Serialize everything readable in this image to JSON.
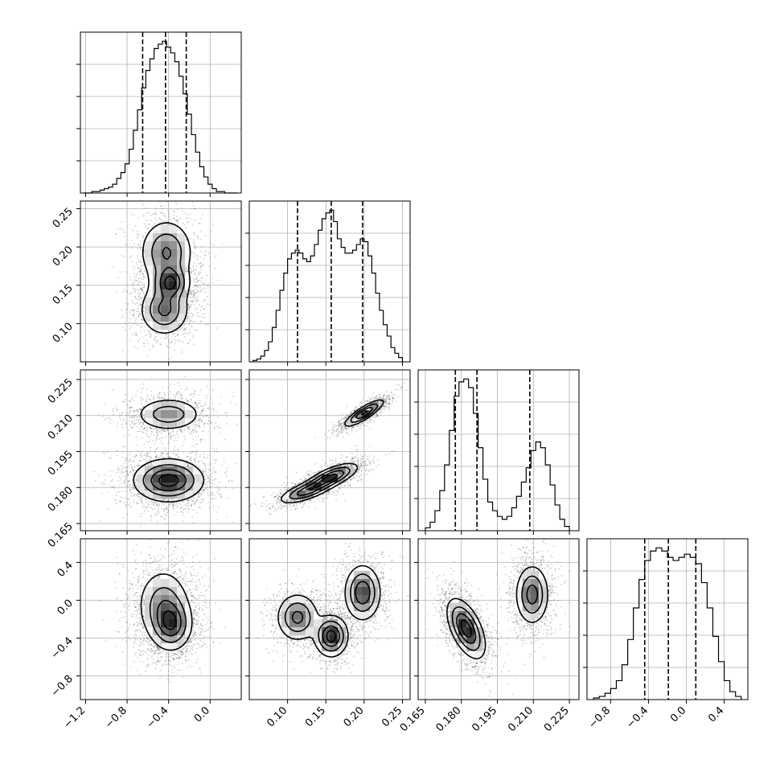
{
  "chart_data": {
    "type": "corner",
    "grid": true,
    "n_params": 4,
    "params": [
      {
        "range": [
          -1.25,
          0.3
        ],
        "ticks": [
          -1.2,
          -0.8,
          -0.4,
          0.0
        ],
        "tick_labels": [
          "−1.2",
          "−0.8",
          "−0.4",
          "0.0"
        ]
      },
      {
        "range": [
          0.05,
          0.26
        ],
        "ticks": [
          0.1,
          0.15,
          0.2,
          0.25
        ],
        "tick_labels": [
          "0.10",
          "0.15",
          "0.20",
          "0.25"
        ]
      },
      {
        "range": [
          0.162,
          0.229
        ],
        "ticks": [
          0.165,
          0.18,
          0.195,
          0.21,
          0.225
        ],
        "tick_labels": [
          "0.165",
          "0.180",
          "0.195",
          "0.210",
          "0.225"
        ]
      },
      {
        "range": [
          -1.05,
          0.65
        ],
        "ticks": [
          -0.8,
          -0.4,
          0.0,
          0.4
        ],
        "tick_labels": [
          "−0.8",
          "−0.4",
          "0.0",
          "0.4"
        ]
      }
    ],
    "histograms": [
      {
        "param": 0,
        "quantiles": [
          -0.65,
          -0.43,
          -0.23
        ],
        "bin_edges": [
          -1.22,
          -1.18,
          -1.14,
          -1.1,
          -1.06,
          -1.02,
          -0.98,
          -0.94,
          -0.9,
          -0.86,
          -0.82,
          -0.78,
          -0.74,
          -0.7,
          -0.66,
          -0.62,
          -0.58,
          -0.54,
          -0.5,
          -0.46,
          -0.42,
          -0.38,
          -0.34,
          -0.3,
          -0.26,
          -0.22,
          -0.18,
          -0.14,
          -0.1,
          -0.06,
          -0.02,
          0.02,
          0.06,
          0.1,
          0.14,
          0.18,
          0.22,
          0.26
        ],
        "counts": [
          0,
          0,
          1,
          1,
          2,
          3,
          4,
          6,
          10,
          14,
          20,
          30,
          43,
          57,
          72,
          84,
          92,
          99,
          102,
          104,
          100,
          96,
          90,
          80,
          68,
          54,
          40,
          28,
          18,
          11,
          6,
          3,
          1,
          1,
          0,
          0,
          0
        ]
      },
      {
        "param": 1,
        "quantiles": [
          0.113,
          0.157,
          0.198
        ],
        "bin_edges": [
          0.055,
          0.06,
          0.065,
          0.07,
          0.075,
          0.08,
          0.085,
          0.09,
          0.095,
          0.1,
          0.105,
          0.11,
          0.115,
          0.12,
          0.125,
          0.13,
          0.135,
          0.14,
          0.145,
          0.15,
          0.155,
          0.16,
          0.165,
          0.17,
          0.175,
          0.18,
          0.185,
          0.19,
          0.195,
          0.2,
          0.205,
          0.21,
          0.215,
          0.22,
          0.225,
          0.23,
          0.235,
          0.24,
          0.245,
          0.25
        ],
        "counts": [
          1,
          2,
          4,
          8,
          14,
          24,
          36,
          50,
          62,
          72,
          76,
          78,
          76,
          72,
          70,
          74,
          82,
          92,
          100,
          104,
          106,
          98,
          86,
          80,
          76,
          76,
          78,
          82,
          86,
          84,
          74,
          62,
          48,
          36,
          26,
          18,
          10,
          6,
          3
        ]
      },
      {
        "param": 2,
        "quantiles": [
          0.1775,
          0.1865,
          0.2085
        ],
        "bin_edges": [
          0.165,
          0.167,
          0.169,
          0.171,
          0.173,
          0.175,
          0.177,
          0.179,
          0.181,
          0.183,
          0.185,
          0.187,
          0.189,
          0.191,
          0.193,
          0.195,
          0.197,
          0.199,
          0.201,
          0.203,
          0.205,
          0.207,
          0.209,
          0.211,
          0.213,
          0.215,
          0.217,
          0.219,
          0.221,
          0.223,
          0.225
        ],
        "counts": [
          2,
          6,
          14,
          28,
          46,
          70,
          94,
          104,
          106,
          100,
          82,
          58,
          36,
          20,
          14,
          10,
          8,
          10,
          16,
          24,
          34,
          44,
          56,
          62,
          58,
          46,
          32,
          18,
          8,
          3
        ]
      },
      {
        "param": 3,
        "quantiles": [
          -0.44,
          -0.19,
          0.1
        ],
        "bin_edges": [
          -0.98,
          -0.92,
          -0.86,
          -0.8,
          -0.74,
          -0.68,
          -0.62,
          -0.56,
          -0.5,
          -0.44,
          -0.38,
          -0.32,
          -0.26,
          -0.2,
          -0.14,
          -0.08,
          -0.02,
          0.04,
          0.1,
          0.16,
          0.22,
          0.28,
          0.34,
          0.4,
          0.46,
          0.52,
          0.58
        ],
        "counts": [
          1,
          2,
          4,
          7,
          12,
          22,
          38,
          58,
          76,
          88,
          94,
          96,
          94,
          90,
          88,
          90,
          92,
          90,
          86,
          74,
          58,
          40,
          24,
          12,
          5,
          2
        ]
      }
    ],
    "pairs": [
      {
        "x": 0,
        "y": 1,
        "modes": [
          {
            "c": [
              -0.42,
              0.193
            ],
            "s": [
              0.13,
              0.022
            ],
            "w": 0.8
          },
          {
            "c": [
              -0.38,
              0.153
            ],
            "s": [
              0.09,
              0.012
            ],
            "w": 1.0
          },
          {
            "c": [
              -0.44,
              0.118
            ],
            "s": [
              0.12,
              0.017
            ],
            "w": 0.85
          }
        ]
      },
      {
        "x": 0,
        "y": 2,
        "modes": [
          {
            "c": [
              -0.4,
              0.2105
            ],
            "s": [
              0.16,
              0.0035
            ],
            "w": 0.55
          },
          {
            "c": [
              -0.4,
              0.183
            ],
            "s": [
              0.17,
              0.0045
            ],
            "w": 1.0
          }
        ]
      },
      {
        "x": 1,
        "y": 2,
        "modes": [
          {
            "c": [
              0.2,
              0.211
            ],
            "s": [
              0.013,
              0.0028
            ],
            "w": 0.9,
            "rho": 0.85
          },
          {
            "c": [
              0.125,
              0.1785
            ],
            "s": [
              0.018,
              0.0026
            ],
            "w": 0.75,
            "rho": 0.7
          },
          {
            "c": [
              0.158,
              0.1845
            ],
            "s": [
              0.017,
              0.0028
            ],
            "w": 0.9,
            "rho": 0.7
          }
        ]
      },
      {
        "x": 0,
        "y": 3,
        "modes": [
          {
            "c": [
              -0.45,
              -0.05
            ],
            "s": [
              0.13,
              0.2
            ],
            "w": 0.75
          },
          {
            "c": [
              -0.37,
              -0.26
            ],
            "s": [
              0.1,
              0.14
            ],
            "w": 1.0
          }
        ]
      },
      {
        "x": 1,
        "y": 3,
        "modes": [
          {
            "c": [
              0.113,
              -0.18
            ],
            "s": [
              0.014,
              0.13
            ],
            "w": 0.7
          },
          {
            "c": [
              0.157,
              -0.38
            ],
            "s": [
              0.011,
              0.11
            ],
            "w": 1.0
          },
          {
            "c": [
              0.198,
              0.08
            ],
            "s": [
              0.012,
              0.15
            ],
            "w": 0.85
          }
        ]
      },
      {
        "x": 2,
        "y": 3,
        "modes": [
          {
            "c": [
              0.182,
              -0.3
            ],
            "s": [
              0.004,
              0.16
            ],
            "w": 1.0,
            "rho": -0.55
          },
          {
            "c": [
              0.2095,
              0.06
            ],
            "s": [
              0.0035,
              0.16
            ],
            "w": 0.75
          }
        ]
      }
    ]
  }
}
